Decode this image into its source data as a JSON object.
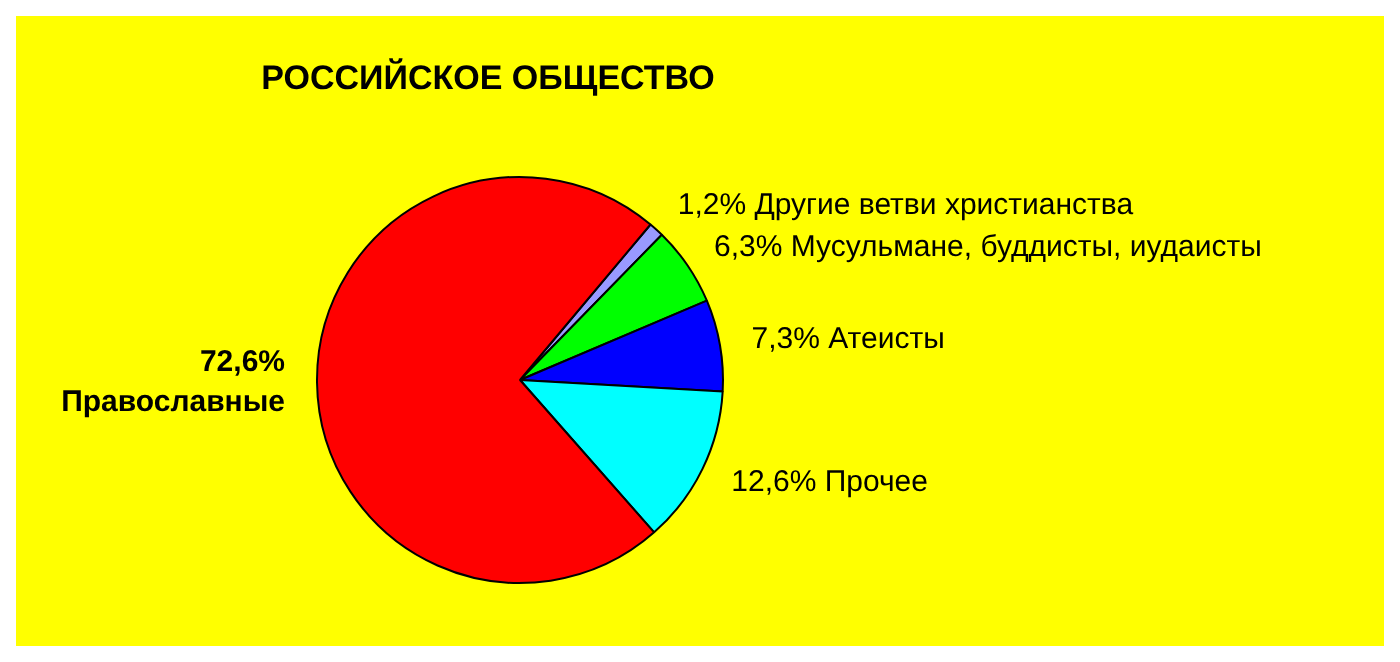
{
  "chart_data": {
    "type": "pie",
    "title": "РОССИЙСКОЕ ОБЩЕСТВО",
    "categories": [
      "Другие ветви христианства",
      "Мусульмане, буддисты, иудаисты",
      "Атеисты",
      "Прочее",
      "Православные"
    ],
    "values": [
      1.2,
      6.3,
      7.3,
      12.6,
      72.6
    ],
    "value_labels": [
      "1,2%",
      "6,3%",
      "7,3%",
      "12,6%",
      "72,6%"
    ],
    "colors": [
      "#9999ff",
      "#00ff00",
      "#0000ff",
      "#00ffff",
      "#ff0000"
    ],
    "legend": false
  }
}
